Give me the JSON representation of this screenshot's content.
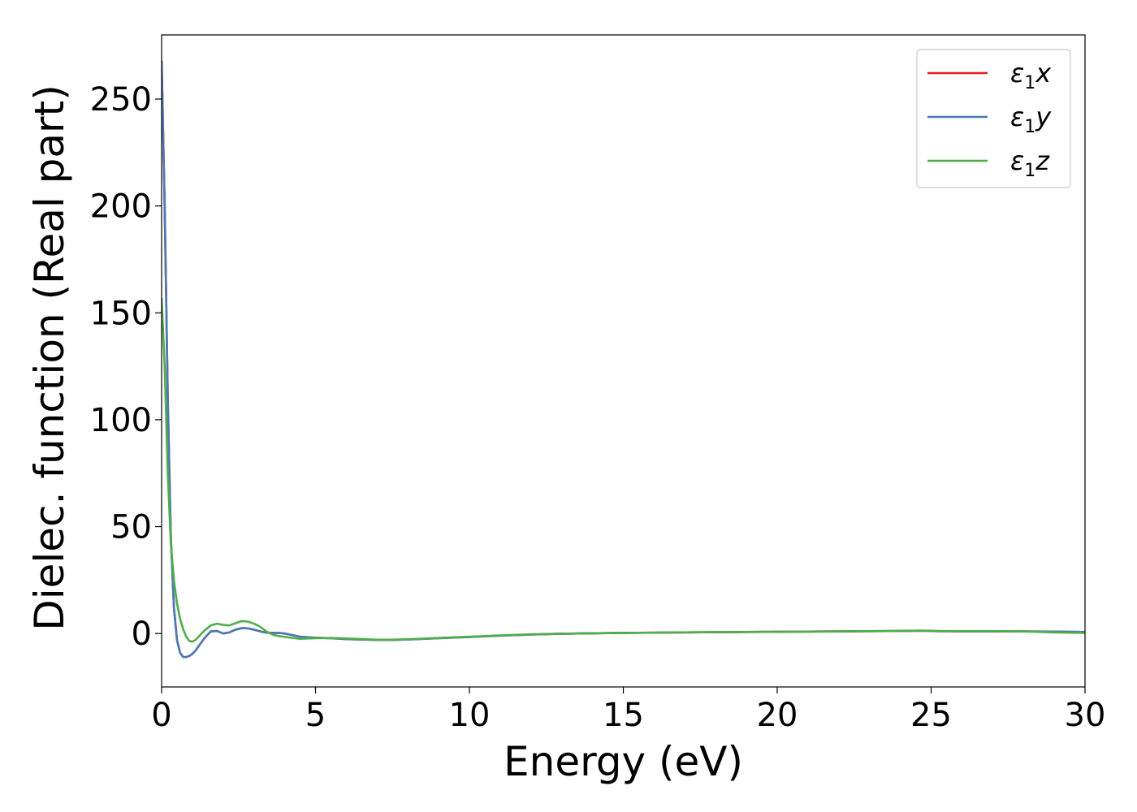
{
  "chart_data": {
    "type": "line",
    "title": "",
    "xlabel": "Energy (eV)",
    "ylabel": "Dielec. function (Real part)",
    "xlim": [
      0,
      30
    ],
    "ylim": [
      -25,
      280
    ],
    "x_ticks": [
      0,
      5,
      10,
      15,
      20,
      25,
      30
    ],
    "y_ticks": [
      0,
      50,
      100,
      150,
      200,
      250
    ],
    "grid": false,
    "legend_position": "top-right",
    "series": [
      {
        "name": "ε₁x",
        "legend_base": "ε",
        "legend_sub": "1",
        "legend_var": "x",
        "color": "#e41a1c",
        "x": [
          0,
          0.1,
          0.2,
          0.3,
          0.4,
          0.5,
          0.6,
          0.7,
          0.8,
          0.9,
          1.0,
          1.1,
          1.2,
          1.4,
          1.6,
          1.8,
          2.0,
          2.2,
          2.4,
          2.6,
          2.8,
          3.0,
          3.2,
          3.4,
          3.6,
          3.8,
          4.0,
          4.5,
          5.0,
          5.5,
          6.0,
          6.5,
          7.0,
          7.5,
          8.0,
          9.0,
          10.0,
          11.0,
          12.0,
          13.0,
          14.0,
          15.0,
          16.0,
          17.0,
          18.0,
          19.0,
          20.0,
          21.0,
          22.0,
          23.0,
          24.0,
          24.7,
          25.2,
          26.0,
          27.0,
          28.0,
          29.0,
          30.0
        ],
        "y": [
          268,
          200,
          110,
          45,
          12,
          -3,
          -9,
          -11,
          -11,
          -10.5,
          -9.5,
          -8,
          -6,
          -2,
          1,
          1.2,
          0,
          0.5,
          1.8,
          2.5,
          2.4,
          1.8,
          1,
          0.4,
          0.3,
          0.3,
          0,
          -1.5,
          -2,
          -2.2,
          -2.6,
          -2.8,
          -3,
          -3,
          -2.8,
          -2.2,
          -1.6,
          -1,
          -0.5,
          -0.1,
          0.1,
          0.3,
          0.4,
          0.5,
          0.6,
          0.7,
          0.8,
          0.9,
          1.0,
          1.1,
          1.2,
          1.3,
          1.1,
          1.0,
          1.0,
          1.0,
          0.9,
          0.7
        ]
      },
      {
        "name": "ε₁y",
        "legend_base": "ε",
        "legend_sub": "1",
        "legend_var": "y",
        "color": "#4a7ab5",
        "x": [
          0,
          0.1,
          0.2,
          0.3,
          0.4,
          0.5,
          0.6,
          0.7,
          0.8,
          0.9,
          1.0,
          1.1,
          1.2,
          1.4,
          1.6,
          1.8,
          2.0,
          2.2,
          2.4,
          2.6,
          2.8,
          3.0,
          3.2,
          3.4,
          3.6,
          3.8,
          4.0,
          4.5,
          5.0,
          5.5,
          6.0,
          6.5,
          7.0,
          7.5,
          8.0,
          9.0,
          10.0,
          11.0,
          12.0,
          13.0,
          14.0,
          15.0,
          16.0,
          17.0,
          18.0,
          19.0,
          20.0,
          21.0,
          22.0,
          23.0,
          24.0,
          24.7,
          25.2,
          26.0,
          27.0,
          28.0,
          29.0,
          30.0
        ],
        "y": [
          268,
          200,
          110,
          45,
          12,
          -3,
          -9,
          -11,
          -11,
          -10.5,
          -9.5,
          -8,
          -6,
          -2,
          1,
          1.2,
          0,
          0.5,
          1.8,
          2.5,
          2.4,
          1.8,
          1,
          0.4,
          0.3,
          0.3,
          0,
          -1.5,
          -2,
          -2.2,
          -2.6,
          -2.8,
          -3,
          -3,
          -2.8,
          -2.2,
          -1.6,
          -1,
          -0.5,
          -0.1,
          0.1,
          0.3,
          0.4,
          0.5,
          0.6,
          0.7,
          0.8,
          0.9,
          1.0,
          1.1,
          1.2,
          1.3,
          1.1,
          1.0,
          1.0,
          1.0,
          0.9,
          0.7
        ]
      },
      {
        "name": "ε₁z",
        "legend_base": "ε",
        "legend_sub": "1",
        "legend_var": "z",
        "color": "#4daf4a",
        "x": [
          0,
          0.1,
          0.2,
          0.3,
          0.4,
          0.5,
          0.6,
          0.7,
          0.8,
          0.9,
          1.0,
          1.1,
          1.2,
          1.4,
          1.6,
          1.8,
          2.0,
          2.2,
          2.4,
          2.6,
          2.8,
          3.0,
          3.2,
          3.4,
          3.6,
          3.8,
          4.0,
          4.5,
          5.0,
          5.5,
          6.0,
          6.5,
          7.0,
          7.5,
          8.0,
          9.0,
          10.0,
          11.0,
          12.0,
          13.0,
          14.0,
          15.0,
          16.0,
          17.0,
          18.0,
          19.0,
          20.0,
          21.0,
          22.0,
          23.0,
          24.0,
          24.7,
          25.2,
          26.0,
          27.0,
          28.0,
          29.0,
          30.0
        ],
        "y": [
          157,
          125,
          75,
          42,
          25,
          14,
          7,
          2,
          -1.5,
          -3.5,
          -3.8,
          -3,
          -1.5,
          1.5,
          3.8,
          4.6,
          4,
          3.8,
          4.8,
          5.8,
          5.6,
          4.6,
          3.2,
          1,
          -0.5,
          -1.2,
          -1.6,
          -2.5,
          -2.2,
          -2.1,
          -2.3,
          -2.6,
          -2.9,
          -2.9,
          -2.7,
          -2.1,
          -1.5,
          -0.9,
          -0.4,
          -0.1,
          0.1,
          0.3,
          0.4,
          0.5,
          0.6,
          0.7,
          0.8,
          0.9,
          1.0,
          1.1,
          1.2,
          1.4,
          1.2,
          1.1,
          1.1,
          1.0,
          0.5,
          0.3
        ]
      }
    ]
  }
}
